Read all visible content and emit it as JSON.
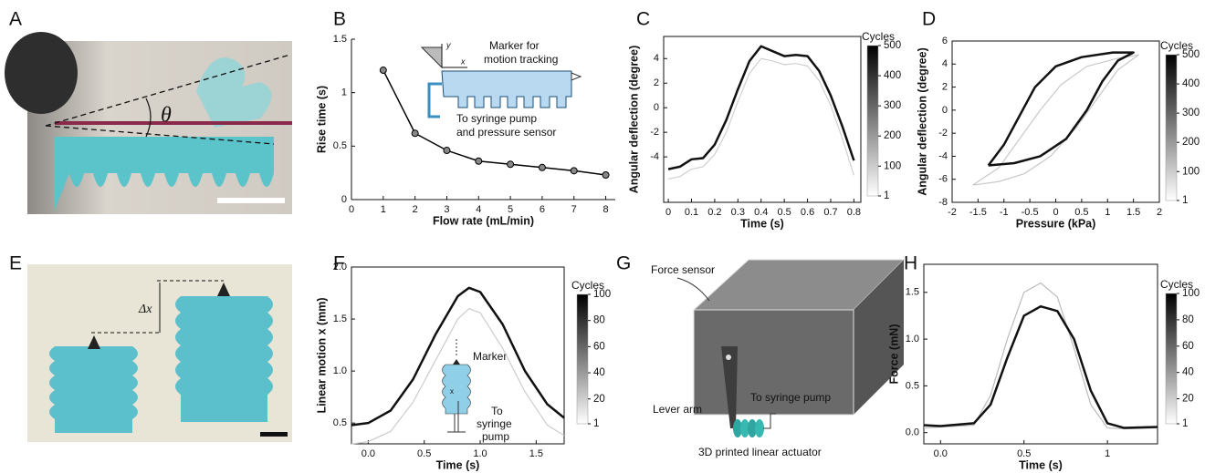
{
  "panel_labels": [
    "A",
    "B",
    "C",
    "D",
    "E",
    "F",
    "G",
    "H"
  ],
  "photo_a": {
    "angle_symbol": "θ"
  },
  "photo_e": {
    "shift_symbol": "Δx"
  },
  "diagram_g": {
    "labels": [
      "Force sensor",
      "Lever arm",
      "To syringe pump",
      "3D printed linear actuator"
    ]
  },
  "chart_data": [
    {
      "type": "line",
      "xlabel": "Flow rate (mL/min)",
      "ylabel": "Rise time (s)",
      "markers": true,
      "x": [
        1,
        2,
        3,
        4,
        5,
        6,
        7,
        8
      ],
      "series": [
        {
          "color": "#000000",
          "values": [
            1.21,
            0.62,
            0.46,
            0.36,
            0.33,
            0.3,
            0.27,
            0.23
          ]
        }
      ],
      "xlim": [
        0,
        8.3
      ],
      "xticks": [
        0,
        1,
        2,
        3,
        4,
        5,
        6,
        7,
        8
      ],
      "ylim": [
        0,
        1.5
      ],
      "yticks": [
        0,
        0.5,
        1,
        1.5
      ],
      "annotations": [
        "y",
        "x",
        "Marker for",
        "motion tracking",
        "To syringe pump",
        "and pressure sensor"
      ]
    },
    {
      "type": "line",
      "xlabel": "Time (s)",
      "ylabel": "Angular deflection (degree)",
      "x": [
        0,
        0.05,
        0.1,
        0.15,
        0.2,
        0.25,
        0.3,
        0.35,
        0.4,
        0.45,
        0.5,
        0.55,
        0.6,
        0.65,
        0.7,
        0.75,
        0.8
      ],
      "series": [
        {
          "color": "#d0d0d0",
          "values": [
            -5.8,
            -5.6,
            -5,
            -4.8,
            -3.8,
            -2,
            0.5,
            2.8,
            4,
            3.8,
            3.5,
            3.6,
            3.4,
            2.2,
            0.2,
            -2.5,
            -5.5
          ]
        },
        {
          "color": "#111111",
          "values": [
            -5,
            -4.8,
            -4.2,
            -4.1,
            -3,
            -1,
            1.5,
            3.8,
            5,
            4.6,
            4.2,
            4.3,
            4.2,
            3,
            1,
            -1.5,
            -4.3
          ]
        }
      ],
      "xlim": [
        -0.02,
        0.83
      ],
      "xticks": [
        0,
        0.1,
        0.2,
        0.3,
        0.4,
        0.5,
        0.6,
        0.7,
        0.8
      ],
      "ylim": [
        -7.7,
        5.8
      ],
      "yticks": [
        -4,
        -2,
        0,
        2,
        4
      ],
      "colorbar": {
        "label": "Cycles",
        "lim": [
          1,
          500
        ],
        "ticks": [
          1,
          100,
          200,
          300,
          400,
          500
        ]
      }
    },
    {
      "type": "line",
      "xlabel": "Pressure (kPa)",
      "ylabel": "Angular deflection (degree)",
      "series": [
        {
          "color": "#c8c8c8",
          "x": [
            -1.6,
            -1.1,
            -0.6,
            -0.1,
            0.4,
            0.8,
            1.2,
            1.6,
            1.2,
            0.6,
            0.1,
            -0.3,
            -0.7,
            -1.1,
            -1.6
          ],
          "values": [
            -6.5,
            -6.2,
            -5.5,
            -4,
            -1.5,
            1,
            3.5,
            4.8,
            4.5,
            3.8,
            2.2,
            0,
            -2.5,
            -5,
            -6.5
          ]
        },
        {
          "color": "#111111",
          "x": [
            -1.3,
            -0.8,
            -0.3,
            0.2,
            0.6,
            0.9,
            1.2,
            1.5,
            1.1,
            0.5,
            0,
            -0.4,
            -0.7,
            -1,
            -1.3
          ],
          "values": [
            -4.8,
            -4.6,
            -4,
            -2.5,
            0,
            2.5,
            4.3,
            5,
            5,
            4.6,
            3.8,
            2,
            -0.5,
            -3,
            -4.8
          ]
        }
      ],
      "xlim": [
        -2,
        2
      ],
      "xticks": [
        -2,
        -1.5,
        -1,
        -0.5,
        0,
        0.5,
        1,
        1.5,
        2
      ],
      "ylim": [
        -8,
        6
      ],
      "yticks": [
        -8,
        -6,
        -4,
        -2,
        0,
        2,
        4,
        6
      ],
      "colorbar": {
        "label": "Cycles",
        "lim": [
          1,
          500
        ],
        "ticks": [
          1,
          100,
          200,
          300,
          400,
          500
        ]
      }
    },
    {
      "type": "line",
      "xlabel": "Time (s)",
      "ylabel": "Linear motion x (mm)",
      "x": [
        -0.15,
        0,
        0.2,
        0.4,
        0.6,
        0.8,
        0.9,
        1,
        1.2,
        1.4,
        1.6,
        1.75
      ],
      "series": [
        {
          "color": "#cccccc",
          "values": [
            0.3,
            0.32,
            0.42,
            0.7,
            1.1,
            1.5,
            1.6,
            1.56,
            1.22,
            0.8,
            0.48,
            0.38
          ]
        },
        {
          "color": "#111111",
          "values": [
            0.48,
            0.5,
            0.62,
            0.92,
            1.35,
            1.72,
            1.8,
            1.76,
            1.45,
            1,
            0.68,
            0.55
          ]
        }
      ],
      "xlim": [
        -0.15,
        1.75
      ],
      "xticks": [
        {
          "value": 0,
          "label": "0.0"
        },
        0.5,
        {
          "value": 1,
          "label": "1.0"
        },
        1.5
      ],
      "ylim": [
        0.3,
        2
      ],
      "yticks": [
        0.5,
        {
          "value": 1,
          "label": "1.0"
        },
        1.5,
        {
          "value": 2,
          "label": "2.0"
        }
      ],
      "colorbar": {
        "label": "Cycles",
        "lim": [
          1,
          100
        ],
        "ticks": [
          1,
          20,
          40,
          60,
          80,
          100
        ]
      },
      "annotations": [
        "Marker",
        "x",
        "To",
        "syringe",
        "pump"
      ]
    },
    {
      "type": "line",
      "xlabel": "Time (s)",
      "ylabel": "Force (mN)",
      "x": [
        -0.1,
        0,
        0.2,
        0.3,
        0.4,
        0.5,
        0.6,
        0.7,
        0.8,
        0.9,
        1,
        1.1,
        1.3
      ],
      "series": [
        {
          "color": "#bbbbbb",
          "values": [
            0.05,
            0.06,
            0.08,
            0.4,
            1,
            1.5,
            1.6,
            1.45,
            0.9,
            0.3,
            0.05,
            0.04,
            0.05
          ]
        },
        {
          "color": "#111111",
          "values": [
            0.08,
            0.07,
            0.1,
            0.3,
            0.8,
            1.25,
            1.35,
            1.3,
            1,
            0.45,
            0.1,
            0.05,
            0.06
          ]
        }
      ],
      "xlim": [
        -0.1,
        1.3
      ],
      "xticks": [
        {
          "value": 0,
          "label": "0.0"
        },
        0.5,
        1
      ],
      "ylim": [
        -0.12,
        1.8
      ],
      "yticks": [
        {
          "value": 0,
          "label": "0.0"
        },
        0.5,
        {
          "value": 1,
          "label": "1.0"
        },
        1.5
      ],
      "colorbar": {
        "label": "Cycles",
        "lim": [
          1,
          100
        ],
        "ticks": [
          1,
          20,
          40,
          60,
          80,
          100
        ]
      }
    }
  ]
}
